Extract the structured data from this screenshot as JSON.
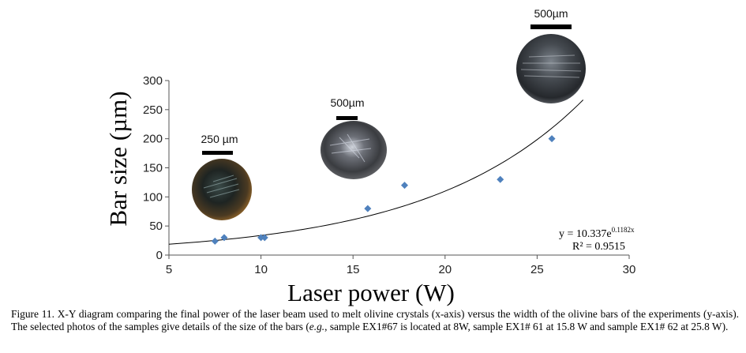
{
  "chart_data": {
    "type": "scatter",
    "x": [
      7.5,
      8.0,
      10.0,
      10.2,
      15.8,
      17.8,
      23.0,
      25.8
    ],
    "y": [
      24,
      30,
      30,
      30,
      80,
      120,
      130,
      200
    ],
    "xlabel": "Laser power (W)",
    "ylabel": "Bar size (µm)",
    "xlim": [
      5,
      30
    ],
    "ylim": [
      0,
      300
    ],
    "xticks": [
      "5",
      "10",
      "15",
      "20",
      "25",
      "30"
    ],
    "yticks": [
      "0",
      "50",
      "100",
      "150",
      "200",
      "250",
      "300"
    ],
    "marker_color": "#4f81bd",
    "trendline": {
      "type": "exponential",
      "a": 10.337,
      "b": 0.1182,
      "x_range": [
        5,
        27.5
      ],
      "equation_prefix": "y = 10.337e",
      "equation_exponent": "0.1182x",
      "r_squared": "R² = 0.9515"
    },
    "annotations": [
      {
        "scale_label": "250 µm",
        "sample": "EX1#67",
        "power": 8
      },
      {
        "scale_label": "500µm",
        "sample": "EX1# 61",
        "power": 15.8
      },
      {
        "scale_label": "500µm",
        "sample": "EX1# 62",
        "power": 25.8
      }
    ]
  },
  "caption": {
    "prefix": "Figure 11. X-Y diagram comparing the final power of the laser beam used to melt olivine crystals (x-axis) versus the width of the olivine bars of the experiments (y-axis). The selected photos of the samples give details of the size of the bars (",
    "eg": "e.g.",
    "suffix": ", sample EX1#67 is located at 8W,  sample EX1# 61 at 15.8 W and  sample EX1# 62 at 25.8 W)."
  }
}
